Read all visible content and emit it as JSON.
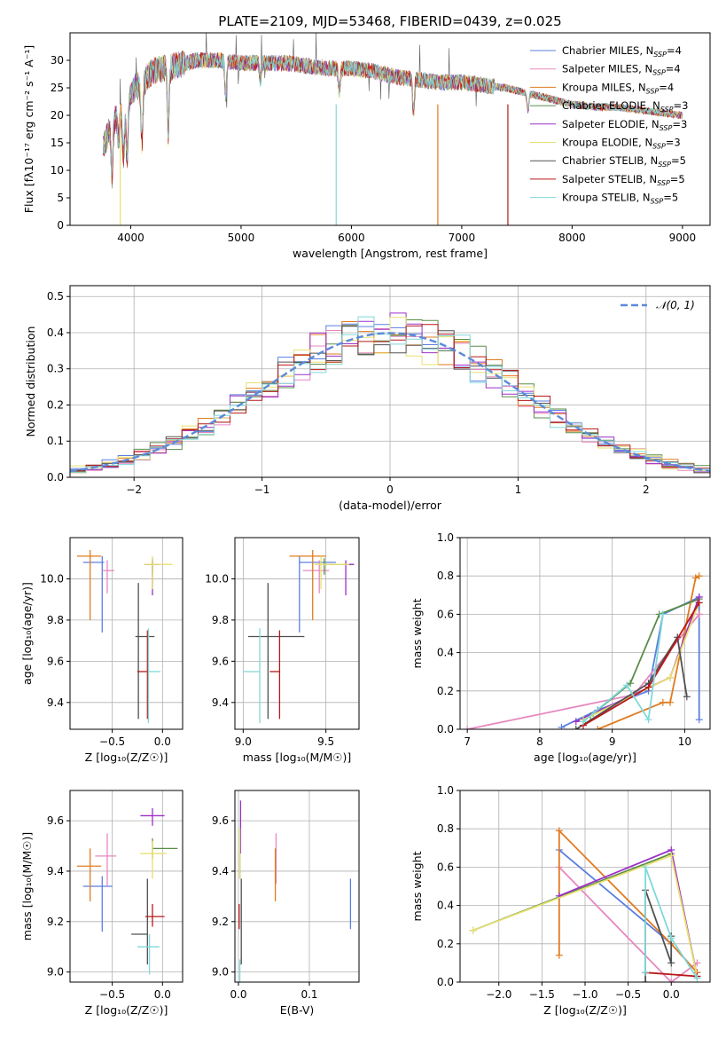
{
  "figure": {
    "title": "PLATE=2109, MJD=53468, FIBERID=0439, z=0.025"
  },
  "colors": [
    "#5b7fe0",
    "#e688c0",
    "#e07b1f",
    "#5a8c4a",
    "#9b30c8",
    "#e8e070",
    "#505050",
    "#b81818",
    "#80d8d8"
  ],
  "legend": [
    {
      "base": "Chabrier MILES, N",
      "sub": "SSP",
      "tail": "=4"
    },
    {
      "base": "Salpeter MILES, N",
      "sub": "SSP",
      "tail": "=4"
    },
    {
      "base": "Kroupa MILES, N",
      "sub": "SSP",
      "tail": "=4"
    },
    {
      "base": "Chabrier ELODIE, N",
      "sub": "SSP",
      "tail": "=3"
    },
    {
      "base": "Salpeter ELODIE, N",
      "sub": "SSP",
      "tail": "=3"
    },
    {
      "base": "Kroupa ELODIE, N",
      "sub": "SSP",
      "tail": "=3"
    },
    {
      "base": "Chabrier STELIB, N",
      "sub": "SSP",
      "tail": "=5"
    },
    {
      "base": "Salpeter STELIB, N",
      "sub": "SSP",
      "tail": "=5"
    },
    {
      "base": "Kroupa STELIB, N",
      "sub": "SSP",
      "tail": "=5"
    }
  ],
  "chart_data": [
    {
      "type": "line",
      "xlabel": "wavelength [Angstrom, rest frame]",
      "ylabel": "Flux [fλ10⁻¹⁷ erg cm⁻² s⁻¹ A⁻¹]",
      "xlim": [
        3450,
        9250
      ],
      "ylim": [
        0,
        35
      ],
      "xticks": [
        4000,
        5000,
        6000,
        7000,
        8000,
        9000
      ],
      "yticks": [
        0,
        5,
        10,
        15,
        20,
        25,
        30
      ],
      "grid": false,
      "spectrum": {
        "x": [
          3750,
          3800,
          3850,
          3900,
          3950,
          4000,
          4050,
          4100,
          4150,
          4200,
          4300,
          4400,
          4500,
          4600,
          4800,
          5000,
          5200,
          5400,
          5600,
          5800,
          6000,
          6200,
          6400,
          6600,
          6800,
          7000,
          7200,
          7400,
          7600,
          7800,
          8000,
          8200,
          8400,
          8600,
          8800,
          9000
        ],
        "y": [
          14,
          17,
          19,
          21,
          20,
          24,
          25.5,
          25,
          27,
          28,
          28.5,
          29,
          29.5,
          30,
          30,
          29.5,
          29.5,
          29.5,
          29,
          28.5,
          28.5,
          28,
          27,
          26.5,
          26,
          26,
          25.5,
          25,
          24,
          23,
          22,
          21.5,
          21.5,
          21,
          20.5,
          20
        ]
      },
      "spectra_series": 9
    },
    {
      "type": "histogram",
      "xlabel": "(data-model)/error",
      "ylabel": "Normed distribution",
      "xlim": [
        -2.5,
        2.5
      ],
      "ylim": [
        0,
        0.53
      ],
      "xticks": [
        -2,
        -1,
        0,
        1,
        2
      ],
      "yticks": [
        0.0,
        0.1,
        0.2,
        0.3,
        0.4,
        0.5
      ],
      "grid": true,
      "bins": 40,
      "reference_label": "𝒩(0, 1)",
      "legend_position": "top-right"
    },
    {
      "type": "errorbar",
      "xlabel": "Z [log₁₀(Z/Z☉)]",
      "ylabel": "age [log₁₀(age/yr)]",
      "xlim": [
        -0.92,
        0.2
      ],
      "ylim": [
        9.27,
        10.2
      ],
      "xticks": [
        -0.5,
        0.0
      ],
      "yticks": [
        9.4,
        9.6,
        9.8,
        10.0
      ],
      "points": [
        {
          "x": -0.6,
          "y": 10.08,
          "xe": [
            0.19,
            0.02
          ],
          "ye": [
            0.34,
            0.03
          ]
        },
        {
          "x": -0.55,
          "y": 10.04,
          "xe": [
            0.05,
            0.07
          ],
          "ye": [
            0.11,
            0.05
          ]
        },
        {
          "x": -0.72,
          "y": 10.11,
          "xe": [
            0.13,
            0.11
          ],
          "ye": [
            0.31,
            0.03
          ]
        },
        {
          "x": -0.1,
          "y": 10.07,
          "xe": [
            0.08,
            0.07
          ],
          "ye": [
            0.05,
            0.03
          ]
        },
        {
          "x": -0.1,
          "y": 10.07,
          "xe": [
            0.08,
            0.07
          ],
          "ye": [
            0.15,
            0.02
          ]
        },
        {
          "x": -0.1,
          "y": 10.07,
          "xe": [
            0.08,
            0.2
          ],
          "ye": [
            0.12,
            0.04
          ]
        },
        {
          "x": -0.24,
          "y": 9.72,
          "xe": [
            0.03,
            0.16
          ],
          "ye": [
            0.4,
            0.26
          ]
        },
        {
          "x": -0.15,
          "y": 9.55,
          "xe": [
            0.1,
            0.0
          ],
          "ye": [
            0.23,
            0.2
          ]
        },
        {
          "x": -0.14,
          "y": 9.55,
          "xe": [
            0.0,
            0.12
          ],
          "ye": [
            0.25,
            0.21
          ]
        }
      ]
    },
    {
      "type": "errorbar",
      "xlabel": "mass [log₁₀(M/M☉)]",
      "ylabel": "",
      "xlim": [
        8.95,
        9.7
      ],
      "ylim": [
        9.27,
        10.2
      ],
      "xticks": [
        9.0,
        9.5
      ],
      "yticks": [
        9.4,
        9.6,
        9.8,
        10.0
      ],
      "points": [
        {
          "x": 9.34,
          "y": 10.08,
          "xe": [
            0.0,
            0.22
          ],
          "ye": [
            0.34,
            0.03
          ]
        },
        {
          "x": 9.46,
          "y": 10.04,
          "xe": [
            0.1,
            0.06
          ],
          "ye": [
            0.11,
            0.05
          ]
        },
        {
          "x": 9.42,
          "y": 10.11,
          "xe": [
            0.14,
            0.08
          ],
          "ye": [
            0.31,
            0.03
          ]
        },
        {
          "x": 9.49,
          "y": 10.07,
          "xe": [
            0.0,
            0.18
          ],
          "ye": [
            0.05,
            0.03
          ]
        },
        {
          "x": 9.62,
          "y": 10.07,
          "xe": [
            0.0,
            0.05
          ],
          "ye": [
            0.15,
            0.02
          ]
        },
        {
          "x": 9.47,
          "y": 10.07,
          "xe": [
            0.04,
            0.17
          ],
          "ye": [
            0.12,
            0.04
          ]
        },
        {
          "x": 9.15,
          "y": 9.72,
          "xe": [
            0.12,
            0.22
          ],
          "ye": [
            0.4,
            0.26
          ]
        },
        {
          "x": 9.22,
          "y": 9.55,
          "xe": [
            0.06,
            0.0
          ],
          "ye": [
            0.23,
            0.2
          ]
        },
        {
          "x": 9.1,
          "y": 9.55,
          "xe": [
            0.1,
            0.0
          ],
          "ye": [
            0.25,
            0.21
          ]
        }
      ]
    },
    {
      "type": "line",
      "xlabel": "age [log₁₀(age/yr)]",
      "ylabel": "mass weight",
      "xlim": [
        6.9,
        10.35
      ],
      "ylim": [
        0,
        1.0
      ],
      "xticks": [
        7,
        8,
        9,
        10
      ],
      "yticks": [
        0.0,
        0.2,
        0.4,
        0.6,
        0.8,
        1.0
      ],
      "series": [
        {
          "x": [
            8.3,
            8.8,
            9.5,
            9.7,
            10.2,
            10.2
          ],
          "y": [
            0.01,
            0.1,
            0.2,
            0.6,
            0.69,
            0.05
          ]
        },
        {
          "x": [
            7.0,
            9.3,
            10.2,
            10.2
          ],
          "y": [
            0.0,
            0.18,
            0.6,
            0.6
          ]
        },
        {
          "x": [
            8.8,
            9.7,
            9.8,
            10.15,
            10.2
          ],
          "y": [
            0.0,
            0.14,
            0.14,
            0.79,
            0.8
          ]
        },
        {
          "x": [
            8.7,
            9.25,
            9.65,
            10.2
          ],
          "y": [
            0.07,
            0.24,
            0.6,
            0.68
          ]
        },
        {
          "x": [
            8.5,
            9.8,
            10.2
          ],
          "y": [
            0.04,
            0.27,
            0.69
          ]
        },
        {
          "x": [
            8.6,
            9.8,
            10.2
          ],
          "y": [
            0.05,
            0.27,
            0.66
          ]
        },
        {
          "x": [
            8.5,
            9.5,
            9.9,
            10.03
          ],
          "y": [
            0.0,
            0.24,
            0.48,
            0.17
          ]
        },
        {
          "x": [
            8.6,
            9.5,
            10.2
          ],
          "y": [
            0.02,
            0.22,
            0.66
          ]
        },
        {
          "x": [
            8.6,
            9.2,
            9.5,
            9.7
          ],
          "y": [
            0.04,
            0.23,
            0.05,
            0.6
          ]
        }
      ]
    },
    {
      "type": "errorbar",
      "xlabel": "Z [log₁₀(Z/Z☉)]",
      "ylabel": "mass [log₁₀(M/M☉)]",
      "xlim": [
        -0.92,
        0.2
      ],
      "ylim": [
        8.96,
        9.72
      ],
      "xticks": [
        -0.5,
        0.0
      ],
      "yticks": [
        9.0,
        9.2,
        9.4,
        9.6
      ],
      "points": [
        {
          "x": -0.6,
          "y": 9.34,
          "xe": [
            0.19,
            0.1
          ],
          "ye": [
            0.18,
            0.04
          ]
        },
        {
          "x": -0.55,
          "y": 9.46,
          "xe": [
            0.12,
            0.09
          ],
          "ye": [
            0.12,
            0.09
          ]
        },
        {
          "x": -0.72,
          "y": 9.42,
          "xe": [
            0.13,
            0.11
          ],
          "ye": [
            0.14,
            0.07
          ]
        },
        {
          "x": -0.1,
          "y": 9.49,
          "xe": [
            0.0,
            0.25
          ],
          "ye": [
            0.04,
            0.04
          ]
        },
        {
          "x": -0.1,
          "y": 9.62,
          "xe": [
            0.12,
            0.12
          ],
          "ye": [
            0.04,
            0.03
          ]
        },
        {
          "x": -0.1,
          "y": 9.47,
          "xe": [
            0.12,
            0.14
          ],
          "ye": [
            0.1,
            0.05
          ]
        },
        {
          "x": -0.15,
          "y": 9.15,
          "xe": [
            0.16,
            0.0
          ],
          "ye": [
            0.12,
            0.22
          ]
        },
        {
          "x": -0.1,
          "y": 9.22,
          "xe": [
            0.07,
            0.12
          ],
          "ye": [
            0.04,
            0.05
          ]
        },
        {
          "x": -0.13,
          "y": 9.1,
          "xe": [
            0.12,
            0.1
          ],
          "ye": [
            0.11,
            0.05
          ]
        }
      ]
    },
    {
      "type": "errorbar",
      "xlabel": "E(B-V)",
      "ylabel": "",
      "xlim": [
        -0.005,
        0.17
      ],
      "ylim": [
        8.96,
        9.72
      ],
      "xticks": [
        0.0,
        0.1
      ],
      "yticks": [
        9.0,
        9.2,
        9.4,
        9.6
      ],
      "points": [
        {
          "x": 0.158,
          "y": 9.27,
          "xe": [
            0,
            0
          ],
          "ye": [
            0.1,
            0.1
          ]
        },
        {
          "x": 0.053,
          "y": 9.45,
          "xe": [
            0,
            0
          ],
          "ye": [
            0.1,
            0.1
          ]
        },
        {
          "x": 0.052,
          "y": 9.39,
          "xe": [
            0,
            0
          ],
          "ye": [
            0.11,
            0.1
          ]
        },
        {
          "x": 0.002,
          "y": 9.47,
          "xe": [
            0,
            0
          ],
          "ye": [
            0.1,
            0.1
          ]
        },
        {
          "x": 0.003,
          "y": 9.57,
          "xe": [
            0,
            0
          ],
          "ye": [
            0.1,
            0.11
          ]
        },
        {
          "x": 0.002,
          "y": 9.47,
          "xe": [
            0,
            0
          ],
          "ye": [
            0.1,
            0.1
          ]
        },
        {
          "x": 0.004,
          "y": 9.2,
          "xe": [
            0,
            0
          ],
          "ye": [
            0.17,
            0.17
          ]
        },
        {
          "x": 0.001,
          "y": 9.22,
          "xe": [
            0,
            0
          ],
          "ye": [
            0.05,
            0.05
          ]
        },
        {
          "x": 0.002,
          "y": 9.0,
          "xe": [
            0,
            0
          ],
          "ye": [
            0.05,
            0.05
          ]
        }
      ]
    },
    {
      "type": "line",
      "xlabel": "Z [log₁₀(Z/Z☉)]",
      "ylabel": "mass weight",
      "xlim": [
        -2.45,
        0.45
      ],
      "ylim": [
        0,
        1.0
      ],
      "xticks": [
        -2.0,
        -1.5,
        -1.0,
        -0.5,
        0.0
      ],
      "yticks": [
        0.0,
        0.2,
        0.4,
        0.6,
        0.8,
        1.0
      ],
      "series": [
        {
          "x": [
            -1.3,
            0.0,
            0.3
          ],
          "y": [
            0.69,
            0.2,
            0.05
          ]
        },
        {
          "x": [
            -1.3,
            0.0,
            0.3
          ],
          "y": [
            0.6,
            0.0,
            0.1
          ]
        },
        {
          "x": [
            -1.3,
            -1.3,
            0.0,
            0.3
          ],
          "y": [
            0.14,
            0.79,
            0.2,
            0.05
          ]
        },
        {
          "x": [
            -2.3,
            0.0,
            0.3
          ],
          "y": [
            0.27,
            0.67,
            0.03
          ]
        },
        {
          "x": [
            -1.3,
            0.0,
            0.3
          ],
          "y": [
            0.45,
            0.69,
            0.03
          ]
        },
        {
          "x": [
            -2.3,
            0.0,
            0.3
          ],
          "y": [
            0.27,
            0.66,
            0.03
          ]
        },
        {
          "x": [
            -0.3,
            -0.3,
            0.0,
            0.0
          ],
          "y": [
            0.0,
            0.48,
            0.1,
            0.24
          ]
        },
        {
          "x": [
            -0.3,
            0.3
          ],
          "y": [
            0.05,
            0.03
          ]
        },
        {
          "x": [
            -0.3,
            -0.3,
            0.0,
            0.3
          ],
          "y": [
            0.05,
            0.6,
            0.23,
            0.02
          ]
        }
      ]
    }
  ]
}
